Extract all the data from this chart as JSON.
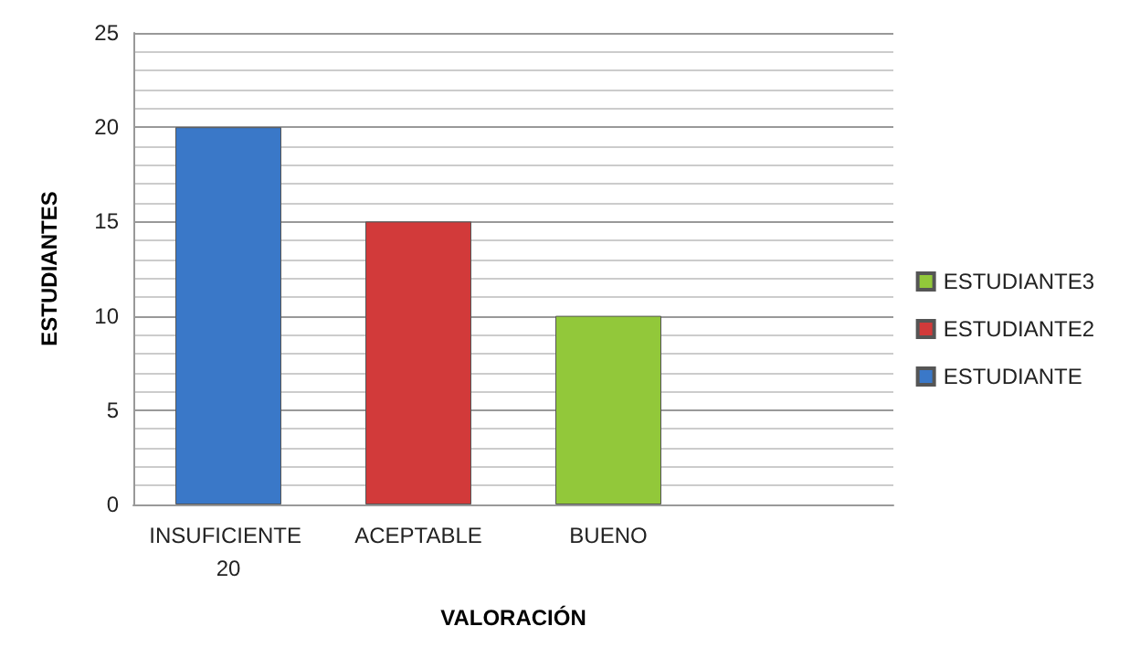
{
  "chart_data": {
    "type": "bar",
    "stacked": true,
    "categories": [
      "INSUFICIENTE 20",
      "ACEPTABLE",
      "BUENO",
      null
    ],
    "series": [
      {
        "name": "ESTUDIANTE",
        "color": "#3a78c8",
        "values": [
          20,
          null,
          null,
          null
        ]
      },
      {
        "name": "ESTUDIANTE2",
        "color": "#d23a3a",
        "values": [
          null,
          15,
          null,
          null
        ]
      },
      {
        "name": "ESTUDIANTE3",
        "color": "#92c83a",
        "values": [
          null,
          null,
          10,
          null
        ]
      }
    ],
    "xlabel": "VALORACIÓN",
    "ylabel": "ESTUDIANTES",
    "ylim": [
      0,
      25
    ],
    "yticks": [
      0,
      5,
      10,
      15,
      20,
      25
    ],
    "grid": "y",
    "legend": "right"
  }
}
